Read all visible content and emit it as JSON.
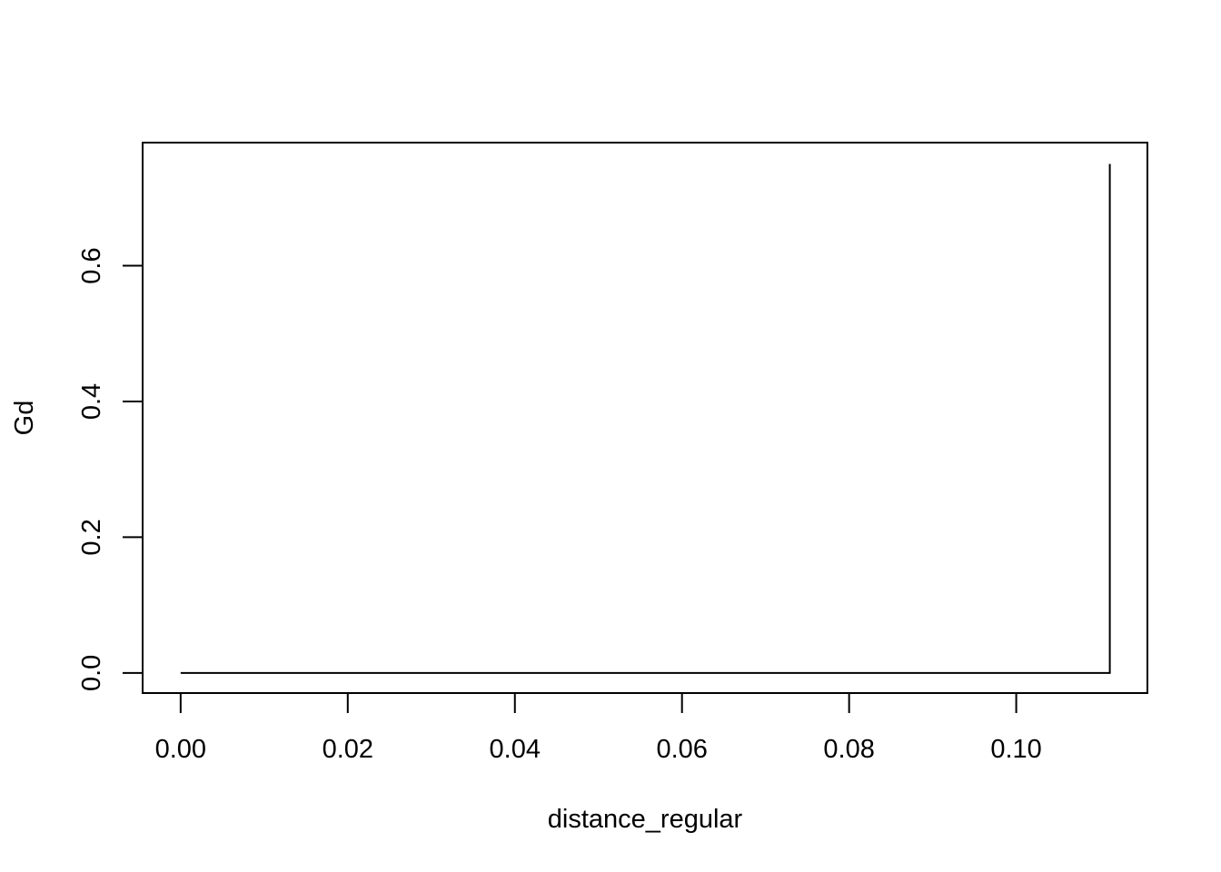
{
  "chart_data": {
    "type": "line",
    "step": true,
    "title": "",
    "xlabel": "distance_regular",
    "ylabel": "Gd",
    "xlim": [
      -0.00455,
      0.1157
    ],
    "ylim": [
      -0.0296,
      0.7814
    ],
    "x_ticks": [
      {
        "value": 0.0,
        "label": "0.00"
      },
      {
        "value": 0.02,
        "label": "0.02"
      },
      {
        "value": 0.04,
        "label": "0.04"
      },
      {
        "value": 0.06,
        "label": "0.06"
      },
      {
        "value": 0.08,
        "label": "0.08"
      },
      {
        "value": 0.1,
        "label": "0.10"
      }
    ],
    "y_ticks": [
      {
        "value": 0.0,
        "label": "0.0"
      },
      {
        "value": 0.2,
        "label": "0.2"
      },
      {
        "value": 0.4,
        "label": "0.4"
      },
      {
        "value": 0.6,
        "label": "0.6"
      }
    ],
    "grid": false,
    "series": [
      {
        "color": "#000000",
        "points": [
          {
            "x": 0.0,
            "y": 0.0
          },
          {
            "x": 0.1112,
            "y": 0.0
          },
          {
            "x": 0.1112,
            "y": 0.75
          }
        ]
      }
    ]
  }
}
